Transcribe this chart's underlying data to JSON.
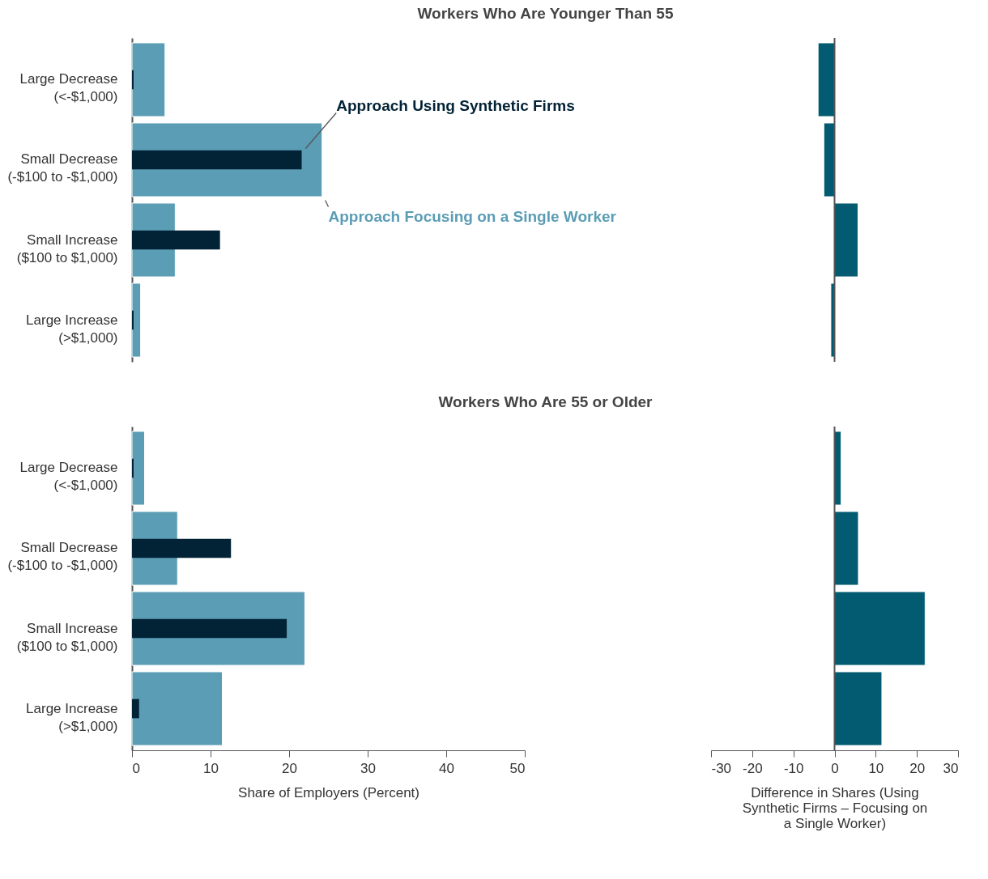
{
  "chart_data": [
    {
      "type": "bar",
      "orientation": "horizontal",
      "title": "Workers Who Are Younger Than 55",
      "categories": [
        "Large Decrease (<-$1,000)",
        "Small Decrease (-$100 to -$1,000)",
        "Small Increase ($100 to $1,000)",
        "Large Increase (>$1,000)"
      ],
      "series": [
        {
          "name": "Approach Focusing on a Single Worker",
          "color": "#5b9db5",
          "values": [
            4.2,
            24.2,
            5.5,
            1.1
          ]
        },
        {
          "name": "Approach Using Synthetic Firms",
          "color": "#022235",
          "values": [
            0.2,
            21.6,
            11.2,
            0.2
          ]
        }
      ],
      "xlim": [
        0,
        50
      ],
      "tick_labels": "y"
    },
    {
      "type": "bar",
      "orientation": "horizontal",
      "categories": [
        null,
        null,
        null,
        null
      ],
      "series": [
        {
          "color": "#025b70",
          "values": [
            -4.0,
            -2.6,
            5.7,
            -0.9
          ]
        }
      ],
      "xlim": [
        -30,
        30
      ],
      "tick_labels": false
    },
    {
      "type": "bar",
      "orientation": "horizontal",
      "title": "Workers Who Are 55 or Older",
      "xlabel": "Share of Employers (Percent)",
      "categories": [
        "Large Decrease (<-$1,000)",
        "Small Decrease (-$100 to -$1,000)",
        "Small Increase ($100 to $1,000)",
        "Large Increase (>$1,000)"
      ],
      "series": [
        {
          "color": "#5b9db5",
          "values": [
            1.6,
            5.8,
            22.0,
            11.5
          ]
        },
        {
          "color": "#022235",
          "values": [
            0.2,
            12.6,
            19.7,
            0.9
          ]
        }
      ],
      "xlim": [
        0,
        50
      ],
      "xticks": [
        0,
        10,
        20,
        30,
        40,
        50
      ]
    },
    {
      "type": "bar",
      "orientation": "horizontal",
      "xlabel": "Difference in Shares (Using Synthetic Firms – Focusing on a Single Worker)",
      "categories": [
        null,
        null,
        null,
        null
      ],
      "series": [
        {
          "color": "#025b70",
          "values": [
            1.6,
            5.8,
            22.0,
            11.5
          ]
        }
      ],
      "xlim": [
        -30,
        30
      ],
      "xticks": [
        -30,
        -20,
        -10,
        0,
        10,
        20,
        30
      ],
      "tick_labels": "x"
    }
  ]
}
